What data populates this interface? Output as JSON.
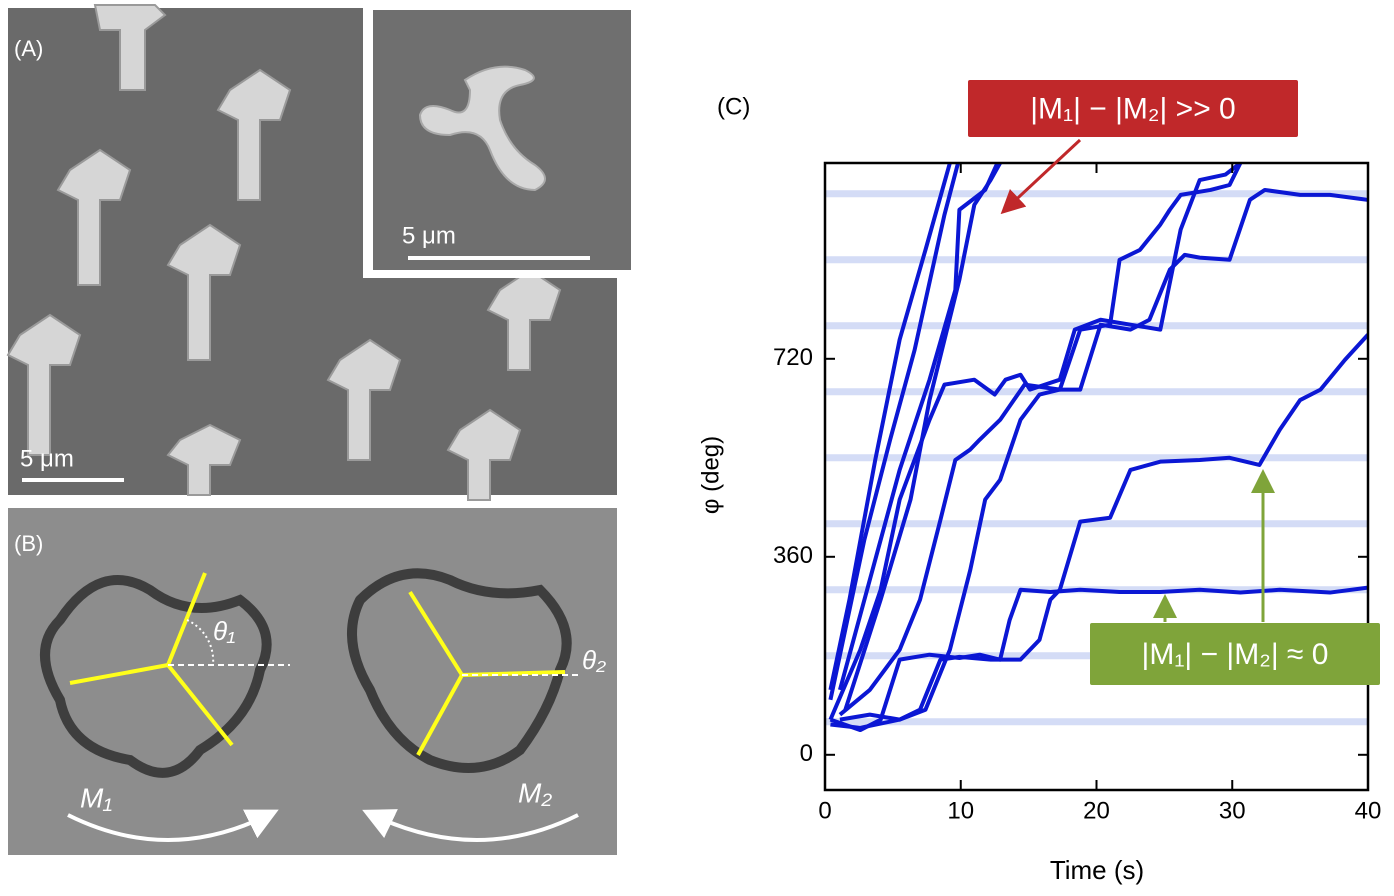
{
  "panel_a": {
    "label": "(A)",
    "scale_bar": "5 μm",
    "inset_scale_bar": "5 μm"
  },
  "panel_b": {
    "label": "(B)",
    "theta_1": "θ₁",
    "theta_2": "θ₂",
    "m_1": "M₁",
    "m_2": "M₂"
  },
  "chart_data": {
    "type": "line",
    "panel_label": "(C)",
    "x_label": "Time (s)",
    "y_label": "φ (deg)",
    "color": "#0b17d4",
    "guide_color": "#d4dcf6",
    "guide_lines": [
      60,
      180,
      300,
      420,
      540,
      660,
      780,
      900,
      1020
    ],
    "xlim": [
      0,
      40
    ],
    "ylim": [
      -64,
      1076
    ],
    "xticks": [
      0,
      10,
      20,
      30,
      40
    ],
    "yticks": [
      0,
      360,
      720
    ],
    "annotations": [
      {
        "text": "|M₁| − |M₂| >> 0",
        "color": "#c0282a"
      },
      {
        "text": "|M₁| − |M₂| ≈ 0",
        "color": "#7fa43a"
      }
    ],
    "series": [
      {
        "x": [
          0.4,
          1.8,
          3.7,
          5.5,
          7.4,
          9.2
        ],
        "values": [
          118,
          282,
          536,
          755,
          918,
          1076
        ]
      },
      {
        "x": [
          0.4,
          2.9,
          4.8,
          6.6,
          8.8,
          9.8
        ],
        "values": [
          100,
          391,
          573,
          736,
          982,
          1076
        ]
      },
      {
        "x": [
          1.1,
          3.3,
          5.5,
          7.7,
          9.6,
          9.9,
          11.8,
          12.7
        ],
        "values": [
          118,
          318,
          518,
          682,
          845,
          991,
          1027,
          1076
        ]
      },
      {
        "x": [
          1.5,
          4.1,
          6.3,
          7.7,
          9.9,
          11.0,
          12.2,
          12.9
        ],
        "values": [
          82,
          282,
          464,
          645,
          864,
          1000,
          1045,
          1076
        ]
      },
      {
        "x": [
          0.4,
          2.6,
          4.1,
          5.5,
          7.7,
          8.8,
          11.0,
          12.5,
          13.3,
          14.4,
          15.1,
          16.2,
          17.3,
          18.4,
          20.3,
          22.5,
          24.7,
          26.2,
          27.6,
          29.5,
          30.6
        ],
        "values": [
          64,
          191,
          300,
          464,
          609,
          673,
          682,
          655,
          682,
          691,
          664,
          673,
          682,
          773,
          791,
          782,
          773,
          955,
          1045,
          1055,
          1076
        ]
      },
      {
        "x": [
          1.1,
          3.3,
          5.5,
          7.0,
          8.5,
          9.6,
          10.7,
          11.4,
          12.9,
          14.7,
          17.3,
          18.8,
          21.0,
          21.7,
          23.2,
          24.7,
          25.4,
          26.2,
          28.4,
          29.8,
          30.6
        ],
        "values": [
          73,
          118,
          191,
          282,
          427,
          536,
          555,
          573,
          609,
          673,
          664,
          773,
          782,
          900,
          918,
          964,
          991,
          1018,
          1027,
          1036,
          1076
        ]
      },
      {
        "x": [
          1.1,
          3.3,
          5.5,
          7.4,
          9.2,
          10.7,
          11.8,
          12.9,
          14.4,
          15.8,
          17.3,
          18.8,
          20.3,
          22.5,
          23.9,
          25.4,
          26.5,
          27.6,
          29.8,
          31.3,
          32.4,
          35.0,
          37.2,
          40
        ],
        "values": [
          64,
          73,
          64,
          82,
          191,
          336,
          464,
          500,
          609,
          655,
          664,
          664,
          782,
          773,
          791,
          882,
          909,
          904,
          900,
          1009,
          1027,
          1018,
          1018,
          1009
        ]
      },
      {
        "x": [
          0.4,
          2.6,
          4.1,
          5.5,
          7.7,
          9.9,
          11.4,
          12.9,
          13.6,
          14.4,
          16.6,
          18.8,
          21.7,
          24.7,
          27.6,
          30.6,
          33.5,
          37.2,
          40
        ],
        "values": [
          64,
          45,
          64,
          173,
          182,
          176,
          182,
          173,
          245,
          300,
          296,
          300,
          296,
          296,
          300,
          295,
          300,
          295,
          304
        ]
      },
      {
        "x": [
          0.4,
          2.6,
          5.5,
          7.0,
          8.5,
          9.9,
          12.2,
          14.4,
          15.8,
          16.6,
          17.3,
          18.8,
          21.0,
          22.5,
          24.7,
          27.6,
          29.8,
          32.0,
          33.5,
          35.0,
          36.5,
          38.3,
          40
        ],
        "values": [
          55,
          49,
          64,
          82,
          173,
          178,
          173,
          173,
          209,
          282,
          300,
          424,
          431,
          518,
          533,
          536,
          540,
          527,
          591,
          645,
          664,
          718,
          764
        ]
      }
    ]
  }
}
